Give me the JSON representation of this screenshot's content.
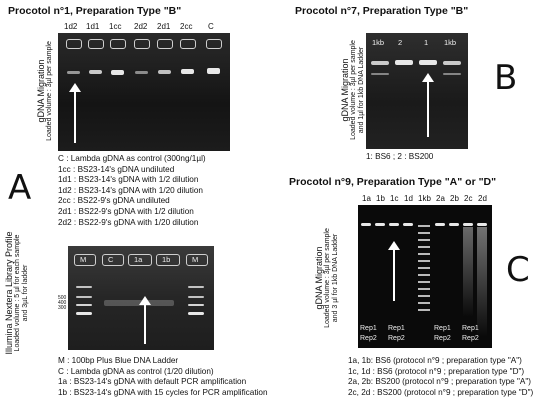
{
  "panelA": {
    "title": "Procotol n°1, Preparation Type \"B\"",
    "letter": "A",
    "lanes": [
      "1d2",
      "1d1",
      "1cc",
      "2d2",
      "2d1",
      "2cc",
      "C"
    ],
    "side_main": "gDNA Migration",
    "side_sub": "Loaded volume : 3µl per sample",
    "legend": [
      "C : Lambda gDNA as control (300ng/1µl)",
      "1cc : BS23-14's gDNA undiluted",
      "1d1 : BS23-14's gDNA with 1/2 dilution",
      "1d2 : BS23-14's gDNA with 1/20 dilution",
      "2cc : BS22-9's gDNA undiluted",
      "2d1 : BS22-9's gDNA with 1/2 dilution",
      "2d2 : BS22-9's gDNA with 1/20 dilution"
    ],
    "library": {
      "lanes": [
        "M",
        "C",
        "1a",
        "1b",
        "M"
      ],
      "side_main": "Illumina Nextera Library Profile",
      "side_sub1": "Loaded volume : 5 µl for each sample",
      "side_sub2": "and 3µL for ladder",
      "ladder_marks": [
        "500",
        "400",
        "300"
      ],
      "legend": [
        "M : 100bp Plus Blue DNA Ladder",
        "C : Lambda gDNA as control (1/20 dilution)",
        "1a : BS23-14's gDNA with default PCR amplification",
        "1b : BS23-14's gDNA with 15 cycles for PCR amplification"
      ]
    }
  },
  "panelB": {
    "title": "Procotol n°7, Preparation Type \"B\"",
    "letter": "B",
    "lanes": [
      "1kb",
      "2",
      "1",
      "1kb"
    ],
    "side_main": "gDNA Migration",
    "side_sub1": "Loaded volume : 3µl per sample",
    "side_sub2": "and 1µl for 1kb DNA Ladder",
    "legend": "1: BS6   ;   2 : BS200"
  },
  "panelC": {
    "title": "Procotol n°9, Preparation Type \"A\" or \"D\"",
    "letter": "C",
    "lanes": [
      "1a",
      "1b",
      "1c",
      "1d",
      "1kb",
      "2a",
      "2b",
      "2c",
      "2d"
    ],
    "reps": [
      "Rep1",
      "Rep2",
      "Rep1",
      "Rep2",
      "Rep1",
      "Rep2",
      "Rep1",
      "Rep2"
    ],
    "side_main": "gDNA Migration",
    "side_sub1": "Loaded volume : 3µl per sample",
    "side_sub2": "and 3 µl for 1kb DNA Ladder",
    "legend": [
      "1a, 1b: BS6 (protocol n°9 ; preparation type \"A\")",
      "1c, 1d : BS6 (protocol n°9 ; preparation type \"D\")",
      "2a, 2b: BS200 (protocol n°9 ; preparation type \"A\")",
      "2c, 2d : BS200 (protocol n°9 ; preparation type \"D\")"
    ]
  }
}
